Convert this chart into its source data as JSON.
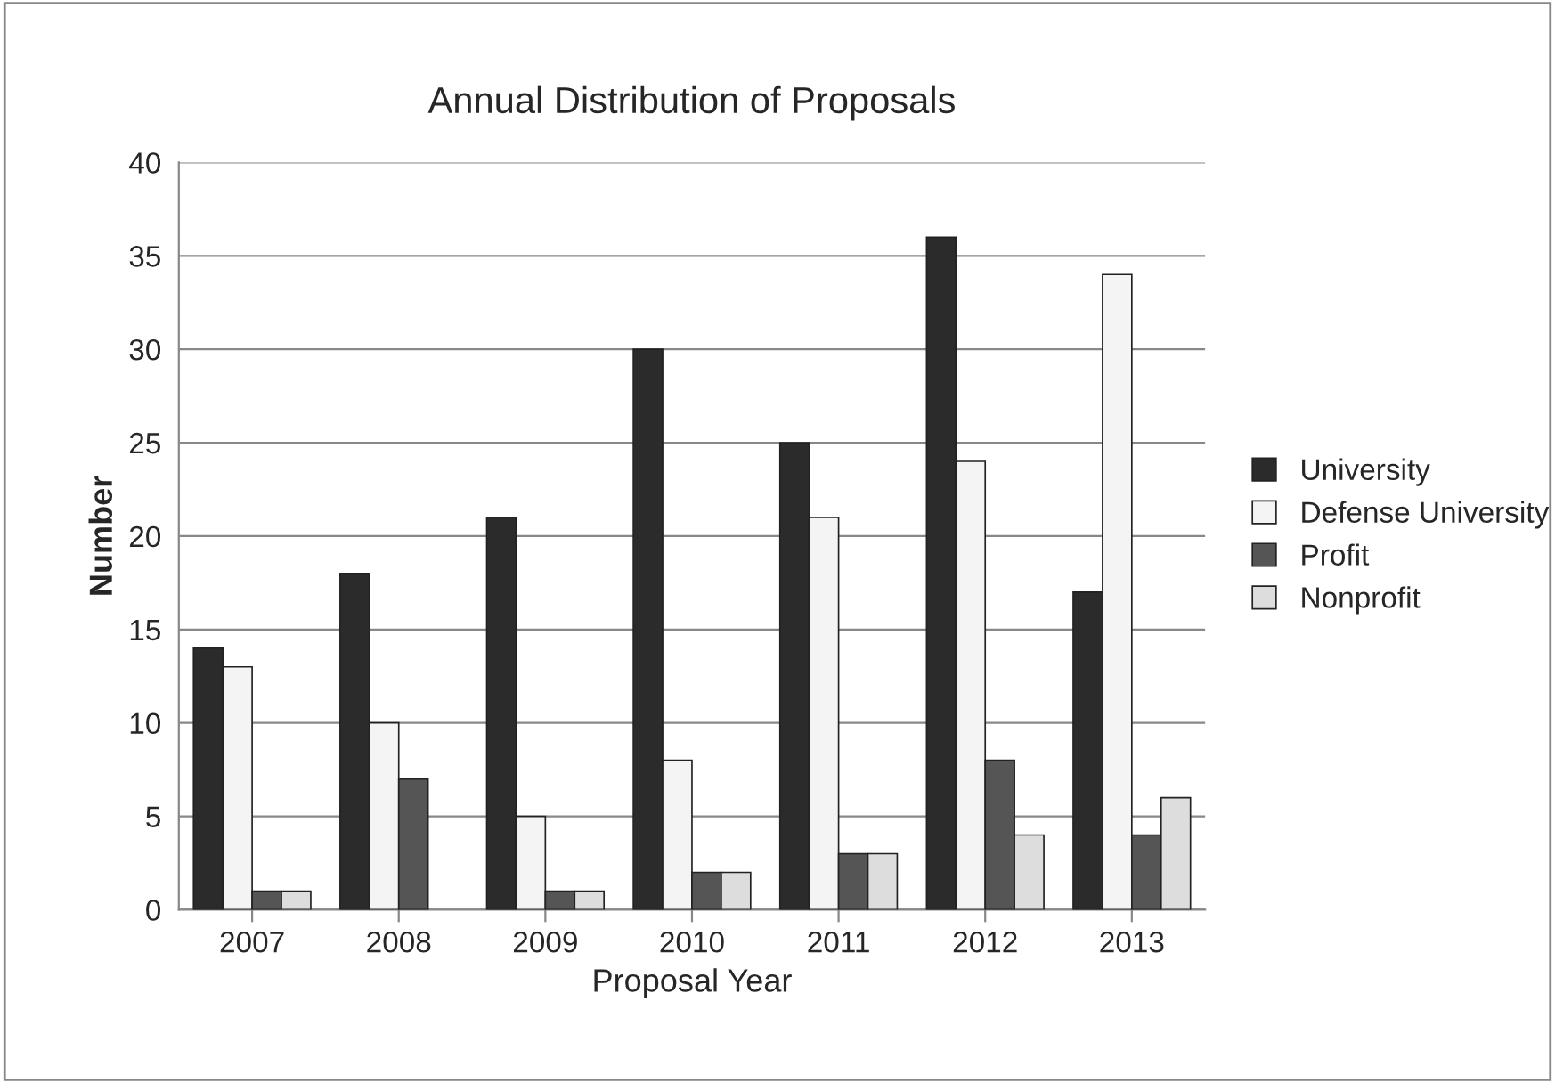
{
  "chart_data": {
    "type": "bar",
    "title": "Annual Distribution of Proposals",
    "xlabel": "Proposal Year",
    "ylabel": "Number",
    "categories": [
      "2007",
      "2008",
      "2009",
      "2010",
      "2011",
      "2012",
      "2013"
    ],
    "series": [
      {
        "name": "University",
        "color": "#2b2b2b",
        "values": [
          14,
          18,
          21,
          30,
          25,
          36,
          17
        ]
      },
      {
        "name": "Defense University",
        "color": "#f4f4f4",
        "values": [
          13,
          10,
          5,
          8,
          21,
          24,
          34
        ]
      },
      {
        "name": "Profit",
        "color": "#555555",
        "values": [
          1,
          7,
          1,
          2,
          3,
          8,
          4
        ]
      },
      {
        "name": "Nonprofit",
        "color": "#dddddd",
        "values": [
          1,
          0,
          1,
          2,
          3,
          4,
          6
        ]
      }
    ],
    "ylim": [
      0,
      40
    ],
    "yticks": [
      0,
      5,
      10,
      15,
      20,
      25,
      30,
      35,
      40
    ],
    "grid": "y",
    "legend": "right"
  }
}
